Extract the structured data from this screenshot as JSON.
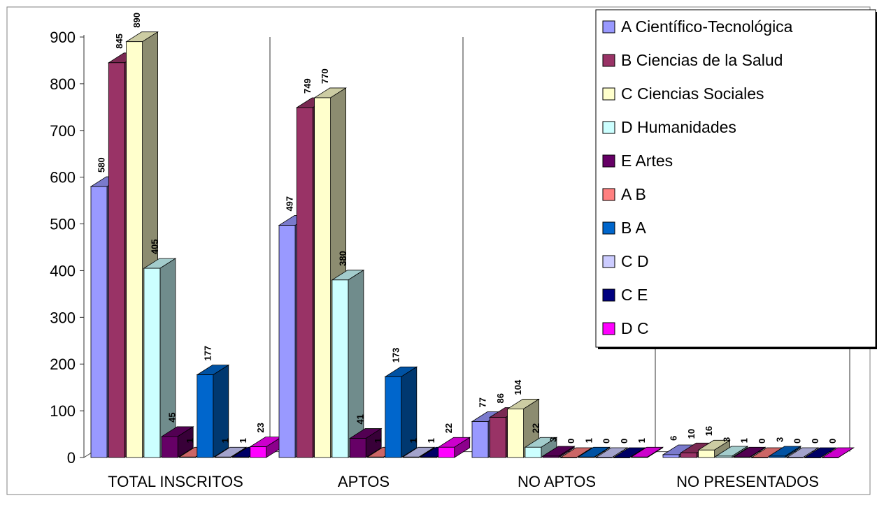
{
  "chart_data": {
    "type": "bar",
    "title": "",
    "xlabel": "",
    "ylabel": "",
    "ylim": [
      0,
      900
    ],
    "yticks": [
      "0",
      "100",
      "200",
      "300",
      "400",
      "500",
      "600",
      "700",
      "800",
      "900"
    ],
    "categories": [
      "TOTAL INSCRITOS",
      "APTOS",
      "NO APTOS",
      "NO PRESENTADOS"
    ],
    "legend_position": "top-right",
    "grid": false,
    "series": [
      {
        "name": "A Científico-Tecnológica",
        "color": "#9999ff",
        "values": [
          580,
          497,
          77,
          6
        ],
        "labels": [
          "580",
          "497",
          "77",
          "6"
        ]
      },
      {
        "name": "B Ciencias de la Salud",
        "color": "#993366",
        "values": [
          845,
          749,
          86,
          10
        ],
        "labels": [
          "845",
          "749",
          "86",
          "10"
        ]
      },
      {
        "name": "C Ciencias Sociales",
        "color": "#ffffcc",
        "values": [
          890,
          770,
          104,
          16
        ],
        "labels": [
          "890",
          "770",
          "104",
          "16"
        ]
      },
      {
        "name": "D Humanidades",
        "color": "#ccffff",
        "values": [
          405,
          380,
          22,
          3
        ],
        "labels": [
          "405",
          "380",
          "22",
          "3"
        ]
      },
      {
        "name": "E Artes",
        "color": "#660066",
        "values": [
          45,
          41,
          3,
          1
        ],
        "labels": [
          "45",
          "41",
          "3",
          "1"
        ]
      },
      {
        "name": "A  B",
        "color": "#ff8080",
        "values": [
          1,
          1,
          0,
          0
        ],
        "labels": [
          "1",
          "1",
          "0",
          "0"
        ]
      },
      {
        "name": "B  A",
        "color": "#0066cc",
        "values": [
          177,
          173,
          1,
          3
        ],
        "labels": [
          "177",
          "173",
          "1",
          "3"
        ]
      },
      {
        "name": "C  D",
        "color": "#ccccff",
        "values": [
          1,
          1,
          0,
          0
        ],
        "labels": [
          "1",
          "1",
          "0",
          "0"
        ]
      },
      {
        "name": "C  E",
        "color": "#000080",
        "values": [
          1,
          1,
          0,
          0
        ],
        "labels": [
          "1",
          "1",
          "0",
          "0"
        ]
      },
      {
        "name": "D  C",
        "color": "#ff00ff",
        "values": [
          23,
          22,
          1,
          0
        ],
        "labels": [
          "23",
          "22",
          "1",
          "0"
        ]
      }
    ]
  }
}
